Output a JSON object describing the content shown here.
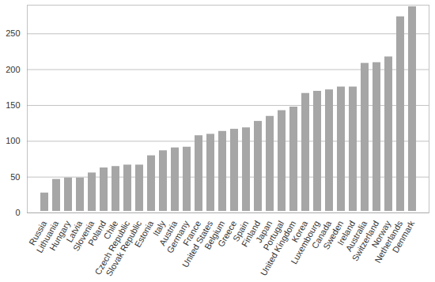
{
  "chart_data": {
    "type": "bar",
    "categories": [
      "Russia",
      "Lithuania",
      "Hungary",
      "Latvia",
      "Slovenia",
      "Poland",
      "Chile",
      "Czech Republic",
      "Slovak Republic",
      "Estonia",
      "Italy",
      "Austria",
      "Germany",
      "France",
      "United States",
      "Belgium",
      "Greece",
      "Spain",
      "Finland",
      "Japan",
      "Portugal",
      "United Kingdom",
      "Korea",
      "Luxembourg",
      "Canada",
      "Sweden",
      "Ireland",
      "Australia",
      "Switzerland",
      "Norway",
      "Netherlands",
      "Denmark"
    ],
    "values": [
      30,
      49,
      51,
      51,
      58,
      65,
      67,
      69,
      69,
      82,
      89,
      93,
      94,
      110,
      112,
      116,
      119,
      121,
      130,
      137,
      145,
      150,
      169,
      172,
      174,
      178,
      178,
      211,
      212,
      220,
      276,
      290
    ],
    "color": "#a6a6a6",
    "ylim": [
      0,
      290
    ],
    "yticks": [
      0,
      50,
      100,
      150,
      200,
      250
    ],
    "grid": true
  }
}
